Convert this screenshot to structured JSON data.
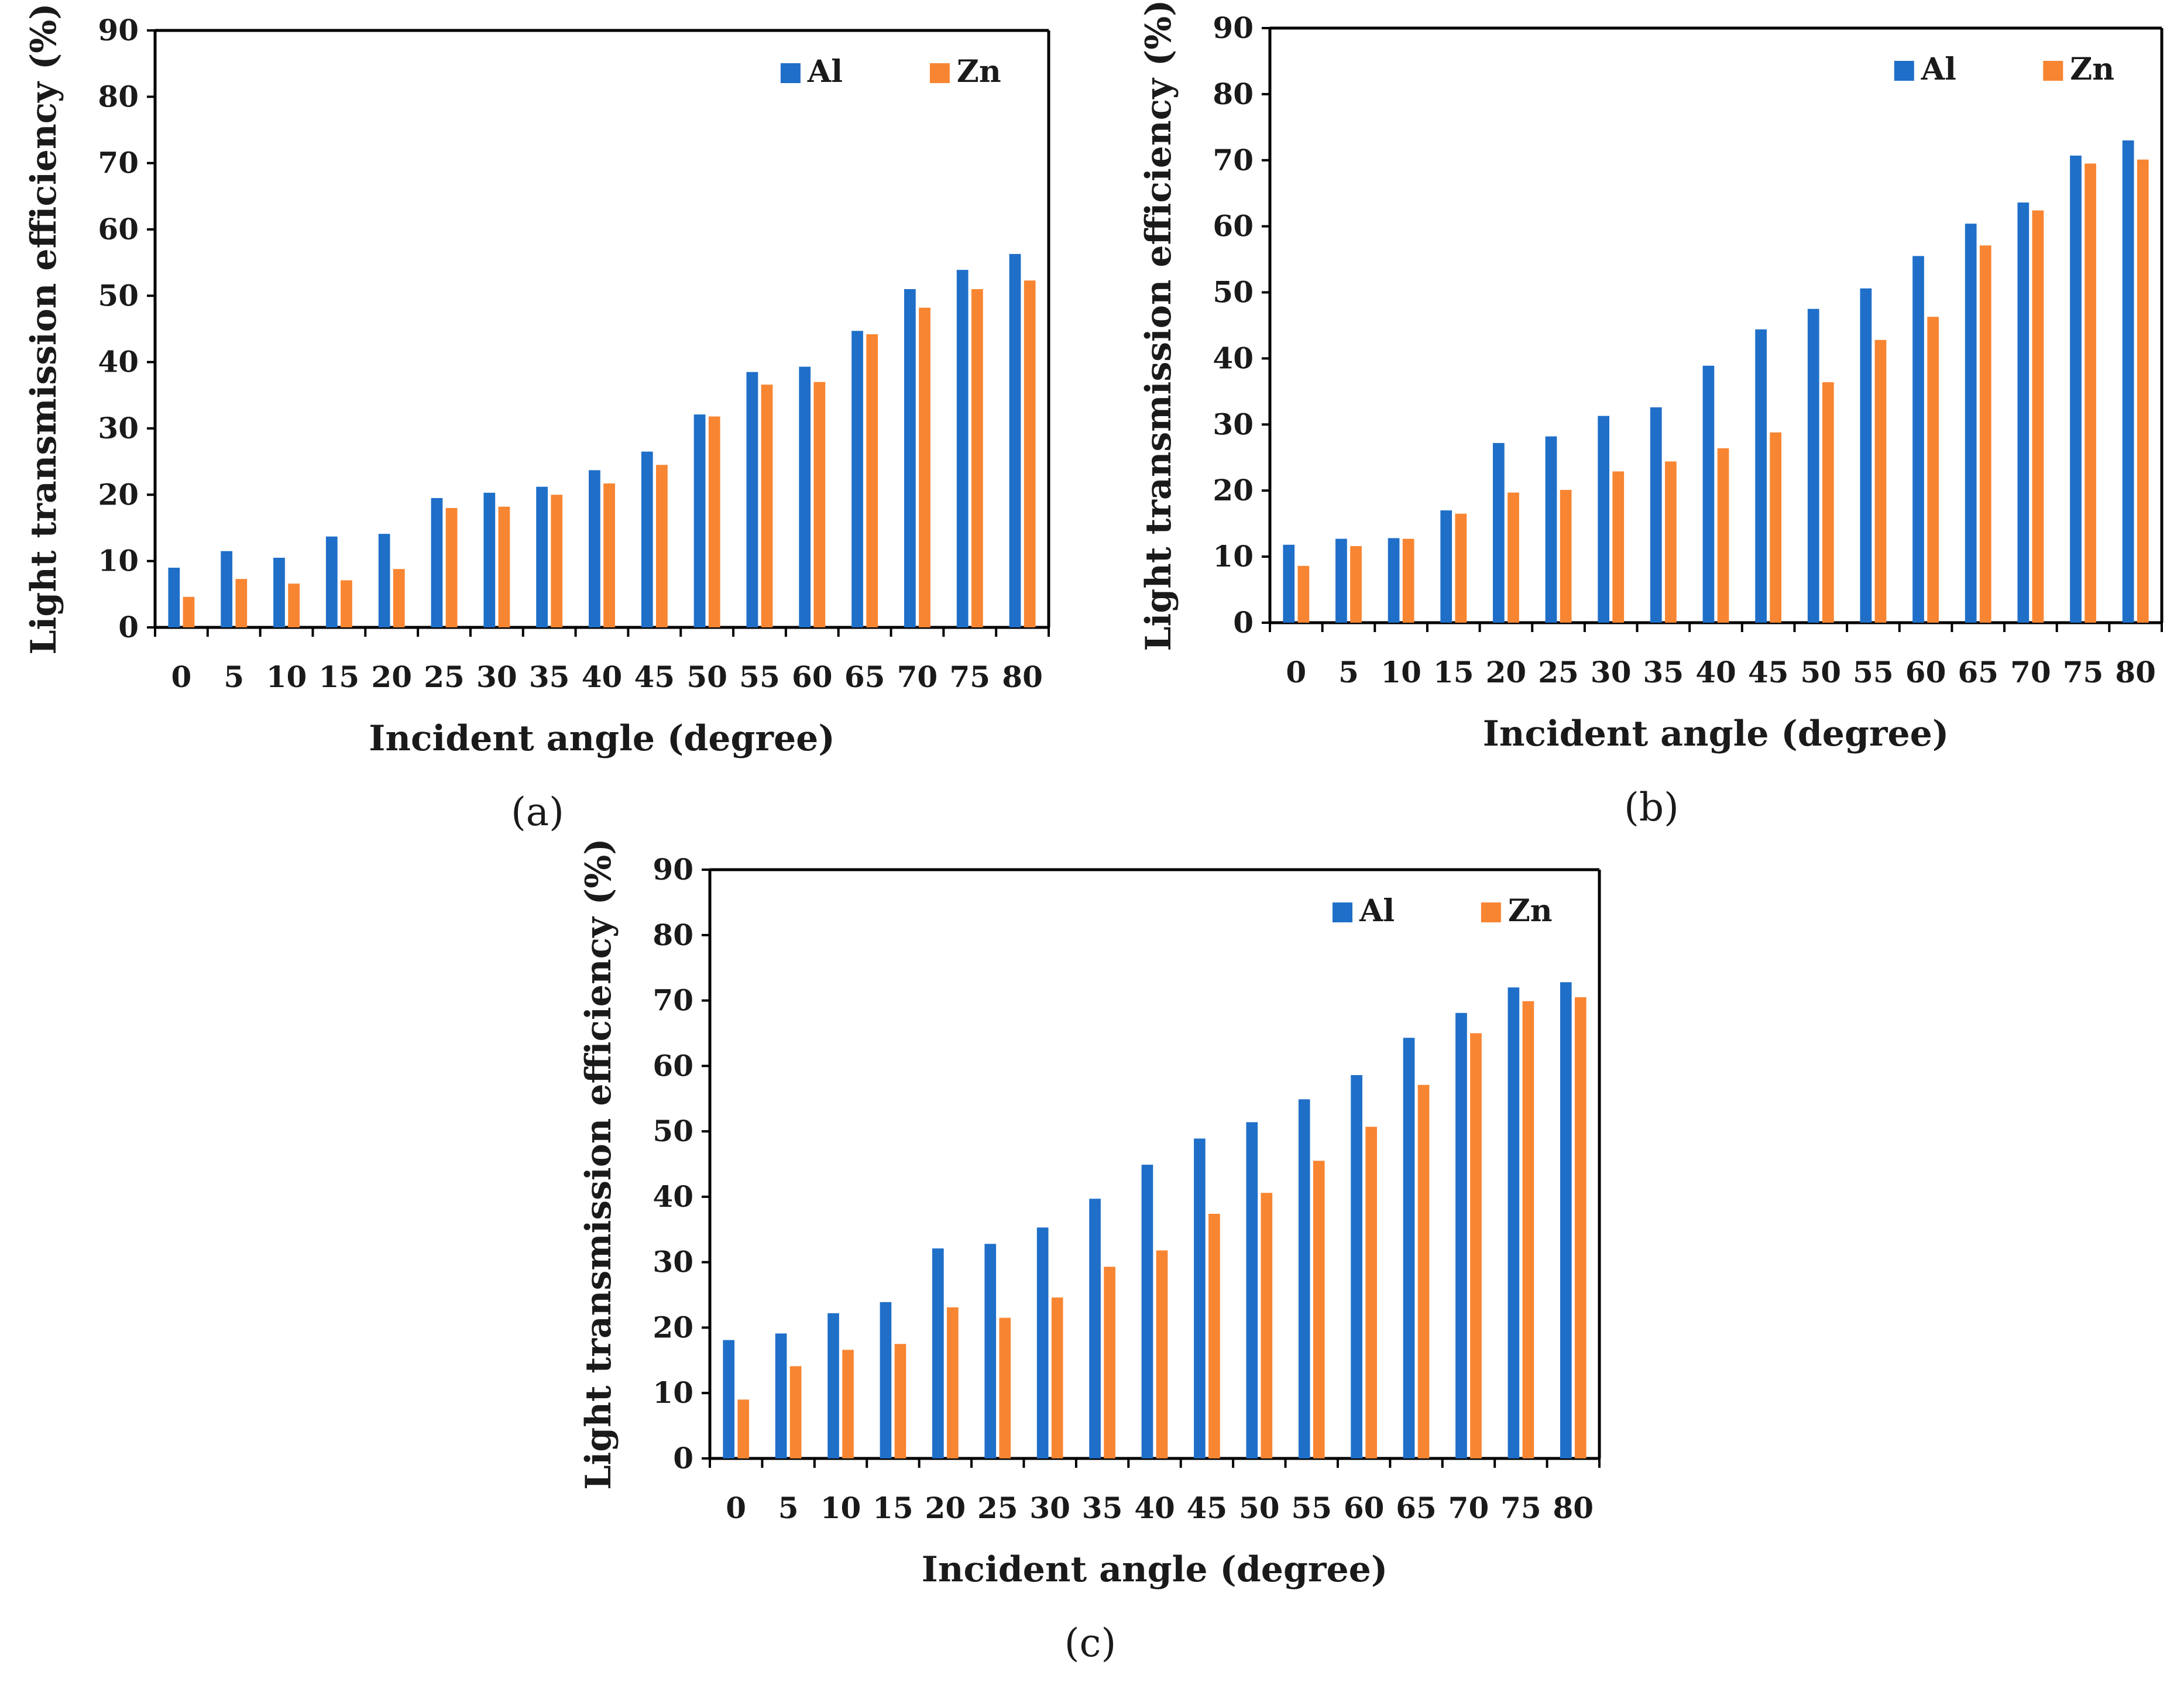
{
  "colors": {
    "al": "#1F6FC9",
    "zn": "#F88532"
  },
  "chart_data": [
    {
      "type": "bar",
      "panel_label": "(a)",
      "categories": [
        "0",
        "5",
        "10",
        "15",
        "20",
        "25",
        "30",
        "35",
        "40",
        "45",
        "50",
        "55",
        "60",
        "65",
        "70",
        "75",
        "80"
      ],
      "series": [
        {
          "name": "Al",
          "values": [
            9,
            11.5,
            10.5,
            13.7,
            14.1,
            19.5,
            20.3,
            21.2,
            23.7,
            26.5,
            32.1,
            38.5,
            39.3,
            44.7,
            51,
            53.9,
            56.3
          ]
        },
        {
          "name": "Zn",
          "values": [
            4.6,
            7.3,
            6.6,
            7.1,
            8.8,
            18,
            18.2,
            20,
            21.7,
            24.5,
            31.8,
            36.6,
            37,
            44.2,
            48.2,
            51,
            52.3
          ]
        }
      ],
      "xlabel": "Incident angle (degree)",
      "ylabel": "Light transmission efficiency (%)",
      "ylim": [
        0,
        90
      ],
      "yticks": [
        "0",
        "10",
        "20",
        "30",
        "40",
        "50",
        "60",
        "70",
        "80",
        "90"
      ],
      "legend_position": "top-right",
      "grid": false
    },
    {
      "type": "bar",
      "panel_label": "(b)",
      "categories": [
        "0",
        "5",
        "10",
        "15",
        "20",
        "25",
        "30",
        "35",
        "40",
        "45",
        "50",
        "55",
        "60",
        "65",
        "70",
        "75",
        "80"
      ],
      "series": [
        {
          "name": "Al",
          "values": [
            11.8,
            12.7,
            12.8,
            17,
            27.2,
            28.2,
            31.3,
            32.6,
            38.9,
            44.4,
            47.5,
            50.6,
            55.5,
            60.4,
            63.6,
            70.7,
            73
          ]
        },
        {
          "name": "Zn",
          "values": [
            8.6,
            11.6,
            12.7,
            16.5,
            19.7,
            20.1,
            22.9,
            24.4,
            26.4,
            28.8,
            36.4,
            42.8,
            46.3,
            57.1,
            62.4,
            69.5,
            70.1
          ]
        }
      ],
      "xlabel": "Incident angle (degree)",
      "ylabel": "Light transmission efficiency (%)",
      "ylim": [
        0,
        90
      ],
      "yticks": [
        "0",
        "10",
        "20",
        "30",
        "40",
        "50",
        "60",
        "70",
        "80",
        "90"
      ],
      "legend_position": "top-right",
      "grid": false
    },
    {
      "type": "bar",
      "panel_label": "(c)",
      "categories": [
        "0",
        "5",
        "10",
        "15",
        "20",
        "25",
        "30",
        "35",
        "40",
        "45",
        "50",
        "55",
        "60",
        "65",
        "70",
        "75",
        "80"
      ],
      "series": [
        {
          "name": "Al",
          "values": [
            18.1,
            19.1,
            22.2,
            23.9,
            32.1,
            32.8,
            35.3,
            39.7,
            44.9,
            48.9,
            51.4,
            54.9,
            58.6,
            64.3,
            68.1,
            72,
            72.8
          ]
        },
        {
          "name": "Zn",
          "values": [
            9,
            14.1,
            16.6,
            17.5,
            23.1,
            21.5,
            24.6,
            29.3,
            31.8,
            37.4,
            40.6,
            45.5,
            50.7,
            57.1,
            65,
            69.9,
            70.5
          ]
        }
      ],
      "xlabel": "Incident angle (degree)",
      "ylabel": "Light transmission efficiency (%)",
      "ylim": [
        0,
        90
      ],
      "yticks": [
        "0",
        "10",
        "20",
        "30",
        "40",
        "50",
        "60",
        "70",
        "80",
        "90"
      ],
      "legend_position": "top-right",
      "grid": false
    }
  ]
}
